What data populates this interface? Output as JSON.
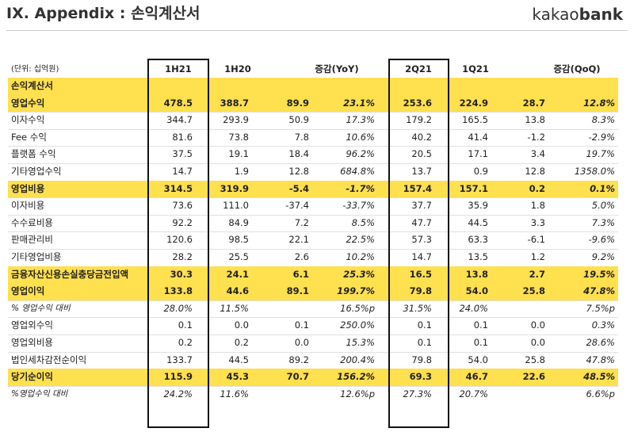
{
  "header": {
    "title": "IX. Appendix : 손익계산서",
    "logo": {
      "light": "kakao",
      "bold": "bank"
    }
  },
  "table": {
    "unit": "(단위: 십억원)",
    "columns": [
      "1H21",
      "1H20",
      "증감(YoY)",
      "2Q21",
      "1Q21",
      "증감(QoQ)"
    ],
    "rows": [
      {
        "label": "손익계산서",
        "highlight": true
      },
      {
        "label": "영업수익",
        "highlight": true,
        "cells": [
          "478.5",
          "388.7",
          "89.9",
          "23.1%",
          "253.6",
          "224.9",
          "28.7",
          "12.8%"
        ]
      },
      {
        "label": "이자수익",
        "cells": [
          "344.7",
          "293.9",
          "50.9",
          "17.3%",
          "179.2",
          "165.5",
          "13.8",
          "8.3%"
        ]
      },
      {
        "label": "Fee 수익",
        "cells": [
          "81.6",
          "73.8",
          "7.8",
          "10.6%",
          "40.2",
          "41.4",
          "-1.2",
          "-2.9%"
        ]
      },
      {
        "label": "플랫폼 수익",
        "cells": [
          "37.5",
          "19.1",
          "18.4",
          "96.2%",
          "20.5",
          "17.1",
          "3.4",
          "19.7%"
        ]
      },
      {
        "label": "기타영업수익",
        "cells": [
          "14.7",
          "1.9",
          "12.8",
          "684.8%",
          "13.7",
          "0.9",
          "12.8",
          "1358.0%"
        ]
      },
      {
        "label": "영업비용",
        "highlight": true,
        "cells": [
          "314.5",
          "319.9",
          "-5.4",
          "-1.7%",
          "157.4",
          "157.1",
          "0.2",
          "0.1%"
        ]
      },
      {
        "label": "이자비용",
        "cells": [
          "73.6",
          "111.0",
          "-37.4",
          "-33.7%",
          "37.7",
          "35.9",
          "1.8",
          "5.0%"
        ]
      },
      {
        "label": "수수료비용",
        "cells": [
          "92.2",
          "84.9",
          "7.2",
          "8.5%",
          "47.7",
          "44.5",
          "3.3",
          "7.3%"
        ]
      },
      {
        "label": "판매관리비",
        "cells": [
          "120.6",
          "98.5",
          "22.1",
          "22.5%",
          "57.3",
          "63.3",
          "-6.1",
          "-9.6%"
        ]
      },
      {
        "label": "기타영업비용",
        "cells": [
          "28.2",
          "25.5",
          "2.6",
          "10.2%",
          "14.7",
          "13.5",
          "1.2",
          "9.2%"
        ]
      },
      {
        "label": "금융자산신용손실충당금전입액",
        "highlight": true,
        "cells": [
          "30.3",
          "24.1",
          "6.1",
          "25.3%",
          "16.5",
          "13.8",
          "2.7",
          "19.5%"
        ]
      },
      {
        "label": "영업이익",
        "highlight": true,
        "cells": [
          "133.8",
          "44.6",
          "89.1",
          "199.7%",
          "79.8",
          "54.0",
          "25.8",
          "47.8%"
        ]
      },
      {
        "label": "% 영업수익 대비",
        "italic": true,
        "cells": [
          "28.0%",
          "11.5%",
          null,
          "16.5%p",
          "31.5%",
          "24.0%",
          null,
          "7.5%p"
        ]
      },
      {
        "label": "영업외수익",
        "cells": [
          "0.1",
          "0.0",
          "0.1",
          "250.0%",
          "0.1",
          "0.1",
          "0.0",
          "0.3%"
        ]
      },
      {
        "label": "영업외비용",
        "cells": [
          "0.2",
          "0.2",
          "0.0",
          "15.3%",
          "0.1",
          "0.1",
          "0.0",
          "28.6%"
        ]
      },
      {
        "label": "법인세차감전순이익",
        "cells": [
          "133.7",
          "44.5",
          "89.2",
          "200.4%",
          "79.8",
          "54.0",
          "25.8",
          "47.8%"
        ]
      },
      {
        "label": "당기순이익",
        "highlight": true,
        "cells": [
          "115.9",
          "45.3",
          "70.7",
          "156.2%",
          "69.3",
          "46.7",
          "22.6",
          "48.5%"
        ]
      },
      {
        "label": "%영업수익 대비",
        "italic": true,
        "cells": [
          "24.2%",
          "11.6%",
          null,
          "12.6%p",
          "27.3%",
          "20.7%",
          null,
          "6.6%p"
        ]
      }
    ]
  }
}
